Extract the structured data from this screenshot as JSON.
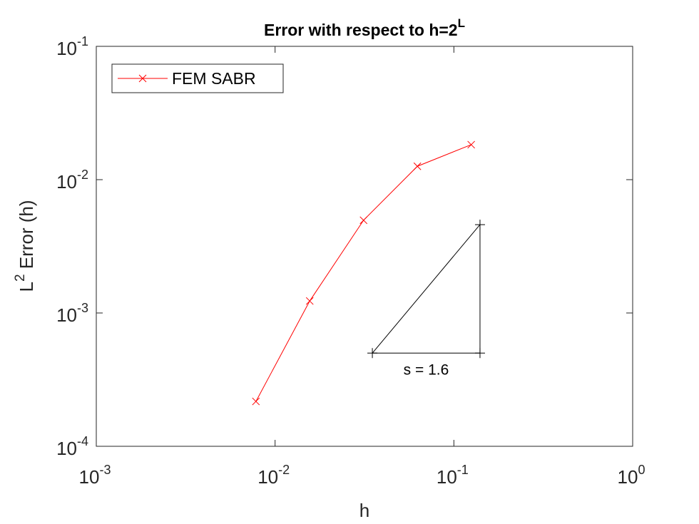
{
  "chart_data": {
    "type": "line",
    "loglog": true,
    "title": {
      "text": "Error with respect to h=2",
      "superscript": "L"
    },
    "xlabel": "h",
    "ylabel": {
      "base": "L",
      "superscript": "2",
      "text": " Error (h)"
    },
    "x": [
      0.0078125,
      0.015625,
      0.03125,
      0.0625,
      0.125
    ],
    "series": [
      {
        "name": "FEM SABR",
        "color": "#ff0000",
        "marker": "x",
        "values": [
          0.000217,
          0.00123,
          0.00496,
          0.0126,
          0.0183
        ]
      }
    ],
    "xlim": [
      0.001,
      1
    ],
    "ylim": [
      0.0001,
      0.1
    ],
    "xticks": [
      {
        "value": 0.001,
        "label": "10",
        "exponent": "-3"
      },
      {
        "value": 0.01,
        "label": "10",
        "exponent": "-2"
      },
      {
        "value": 0.1,
        "label": "10",
        "exponent": "-1"
      },
      {
        "value": 1,
        "label": "10",
        "exponent": "0"
      }
    ],
    "yticks": [
      {
        "value": 0.0001,
        "label": "10",
        "exponent": "-4"
      },
      {
        "value": 0.001,
        "label": "10",
        "exponent": "-3"
      },
      {
        "value": 0.01,
        "label": "10",
        "exponent": "-2"
      },
      {
        "value": 0.1,
        "label": "10",
        "exponent": "-1"
      }
    ],
    "legend": "northwest",
    "slope_triangle": {
      "x": [
        0.035,
        0.14
      ],
      "y": [
        0.0005,
        0.0046
      ],
      "label": "s = 1.6",
      "color": "#000000"
    }
  }
}
